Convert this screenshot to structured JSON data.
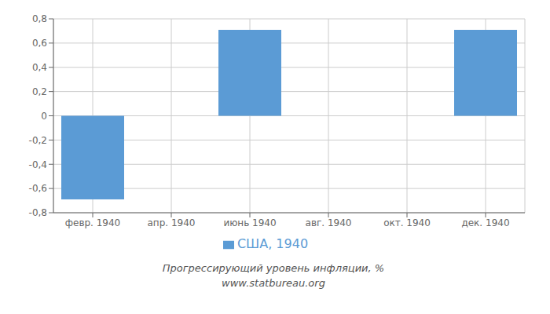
{
  "chart_data": {
    "type": "bar",
    "title": "Прогрессирующий уровень инфляции, %",
    "subtitle": "www.statbureau.org",
    "categories": [
      "февр. 1940",
      "апр. 1940",
      "июнь 1940",
      "авг. 1940",
      "окт. 1940",
      "дек. 1940"
    ],
    "series": [
      {
        "name": "США, 1940",
        "color": "#5B9BD5",
        "values": [
          -0.69,
          0.0,
          0.71,
          0.0,
          0.0,
          0.71
        ]
      }
    ],
    "ylim": [
      -0.8,
      0.8
    ],
    "yticks": [
      {
        "value": -0.8,
        "label": "-0,8"
      },
      {
        "value": -0.6,
        "label": "-0,6"
      },
      {
        "value": -0.4,
        "label": "-0,4"
      },
      {
        "value": -0.2,
        "label": "-0,2"
      },
      0,
      {
        "value": 0.2,
        "label": "0,2"
      },
      {
        "value": 0.4,
        "label": "0,4"
      },
      {
        "value": 0.6,
        "label": "0,6"
      },
      {
        "value": 0.8,
        "label": "0,8"
      }
    ],
    "grid": true,
    "legend": "bottom"
  }
}
